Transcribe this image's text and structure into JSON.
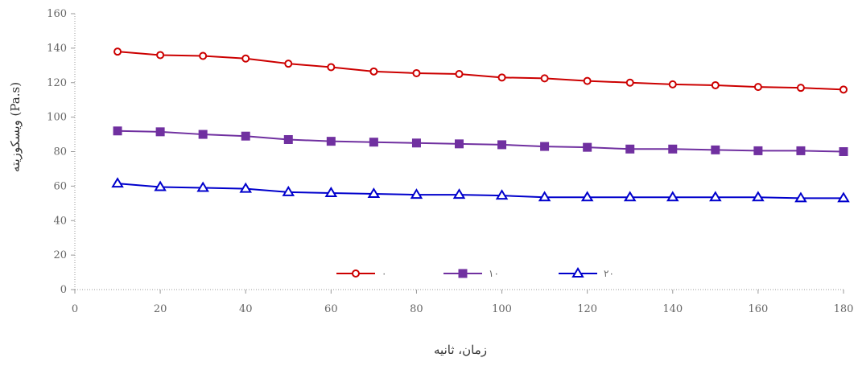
{
  "chart_data": {
    "type": "line",
    "title": "",
    "xlabel": "زمان، ثانیه",
    "ylabel": "ویسکوزیته (Pa.s)",
    "xlim": [
      0,
      180
    ],
    "ylim": [
      0,
      160
    ],
    "x_ticks": [
      "0",
      "20",
      "40",
      "60",
      "80",
      "100",
      "120",
      "140",
      "160",
      "180"
    ],
    "y_ticks": [
      "0",
      "20",
      "40",
      "60",
      "80",
      "100",
      "120",
      "140",
      "160"
    ],
    "x": [
      10,
      20,
      30,
      40,
      50,
      60,
      70,
      80,
      90,
      100,
      110,
      120,
      130,
      140,
      150,
      160,
      170,
      180
    ],
    "grid": false,
    "legend_position": "bottom-center",
    "series": [
      {
        "name": "۰",
        "color": "#cc0000",
        "marker": "circle",
        "values": [
          138,
          136,
          135.5,
          134,
          131,
          129,
          126.5,
          125.5,
          125,
          123,
          122.5,
          121,
          120,
          119,
          118.5,
          117.5,
          117,
          116
        ]
      },
      {
        "name": "۱۰",
        "color": "#7030a0",
        "marker": "square",
        "values": [
          92,
          91.5,
          90,
          89,
          87,
          86,
          85.5,
          85,
          84.5,
          84,
          83,
          82.5,
          81.5,
          81.5,
          81,
          80.5,
          80.5,
          80
        ]
      },
      {
        "name": "۲۰",
        "color": "#0000cc",
        "marker": "triangle",
        "values": [
          61.5,
          59.5,
          59,
          58.5,
          56.5,
          56,
          55.5,
          55,
          55,
          54.5,
          53.5,
          53.5,
          53.5,
          53.5,
          53.5,
          53.5,
          53,
          53
        ]
      }
    ]
  }
}
